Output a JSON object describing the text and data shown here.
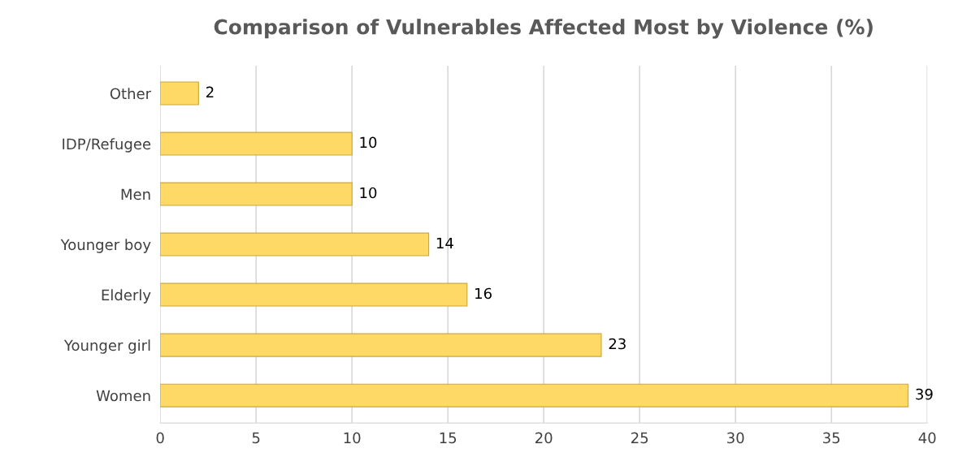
{
  "chart_data": {
    "type": "bar",
    "orientation": "horizontal",
    "title": "Comparison of Vulnerables Affected Most by Violence (%)",
    "categories": [
      "Other",
      "IDP/Refugee",
      "Men",
      "Younger boy",
      "Elderly",
      "Younger girl",
      "Women"
    ],
    "values": [
      2,
      10,
      10,
      14,
      16,
      23,
      39
    ],
    "color": "#ffd966",
    "xlim": [
      0,
      40
    ],
    "xticks": [
      0,
      5,
      10,
      15,
      20,
      25,
      30,
      35,
      40
    ],
    "grid": "x",
    "data_labels": true
  }
}
